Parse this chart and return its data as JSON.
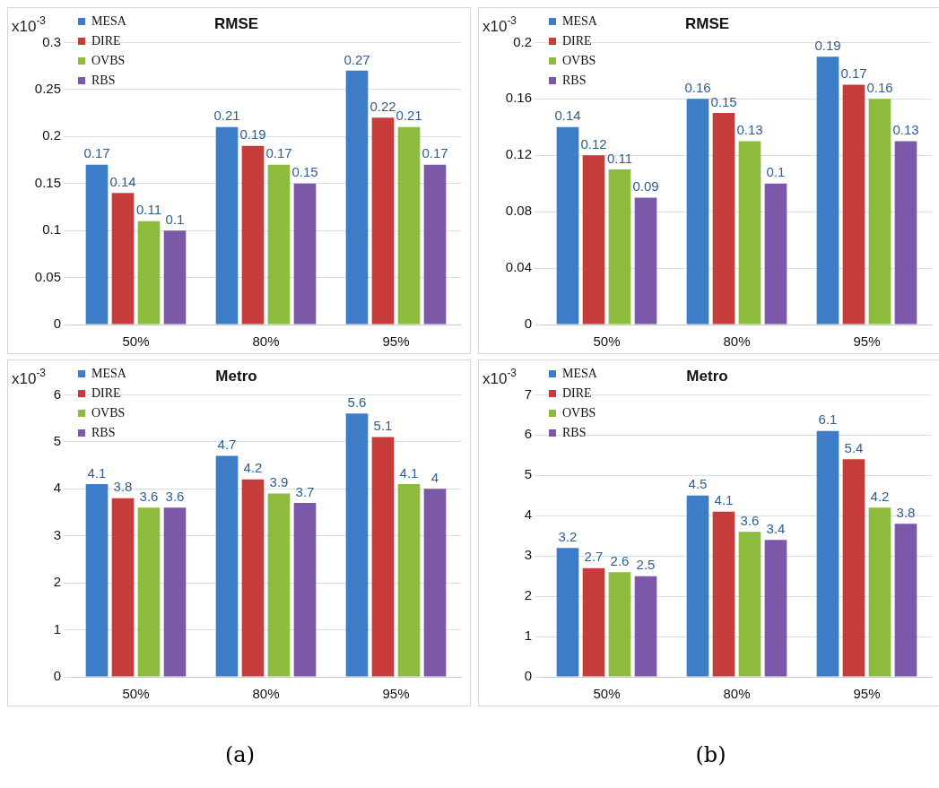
{
  "chart_data": [
    {
      "type": "bar",
      "title": "RMSE",
      "categories": [
        "50%",
        "80%",
        "95%"
      ],
      "series": [
        {
          "name": "MESA",
          "color": "#3d7cc6",
          "values": [
            0.17,
            0.21,
            0.27
          ]
        },
        {
          "name": "DIRE",
          "color": "#c63c3a",
          "values": [
            0.14,
            0.19,
            0.22
          ]
        },
        {
          "name": "OVBS",
          "color": "#8dbb3e",
          "values": [
            0.11,
            0.17,
            0.21
          ]
        },
        {
          "name": "RBS",
          "color": "#7b58a8",
          "values": [
            0.1,
            0.15,
            0.17
          ]
        }
      ],
      "ylim": [
        0,
        0.3
      ],
      "yticks": [
        0,
        0.05,
        0.1,
        0.15,
        0.2,
        0.25,
        0.3
      ],
      "grid": "y",
      "legend": "top left",
      "data_labels": true,
      "annotations": [
        "x10$^{-3}$"
      ]
    },
    {
      "type": "bar",
      "title": "RMSE",
      "categories": [
        "50%",
        "80%",
        "95%"
      ],
      "series": [
        {
          "name": "MESA",
          "color": "#3d7cc6",
          "values": [
            0.14,
            0.16,
            0.19
          ]
        },
        {
          "name": "DIRE",
          "color": "#c63c3a",
          "values": [
            0.12,
            0.15,
            0.17
          ]
        },
        {
          "name": "OVBS",
          "color": "#8dbb3e",
          "values": [
            0.11,
            0.13,
            0.16
          ]
        },
        {
          "name": "RBS",
          "color": "#7b58a8",
          "values": [
            0.09,
            0.1,
            0.13
          ]
        }
      ],
      "ylim": [
        0,
        0.2
      ],
      "yticks": [
        0,
        0.04,
        0.08,
        0.12,
        0.16,
        0.2
      ],
      "grid": "y",
      "legend": "top left",
      "data_labels": true,
      "annotations": [
        "x10$^{-3}$"
      ]
    },
    {
      "type": "bar",
      "title": "Metro",
      "categories": [
        "50%",
        "80%",
        "95%"
      ],
      "series": [
        {
          "name": "MESA",
          "color": "#3d7cc6",
          "values": [
            4.1,
            4.7,
            5.6
          ]
        },
        {
          "name": "DIRE",
          "color": "#c63c3a",
          "values": [
            3.8,
            4.2,
            5.1
          ]
        },
        {
          "name": "OVBS",
          "color": "#8dbb3e",
          "values": [
            3.6,
            3.9,
            4.1
          ]
        },
        {
          "name": "RBS",
          "color": "#7b58a8",
          "values": [
            3.6,
            3.7,
            4
          ]
        }
      ],
      "ylim": [
        0,
        6
      ],
      "yticks": [
        0,
        1,
        2,
        3,
        4,
        5,
        6
      ],
      "grid": "y",
      "legend": "top left",
      "data_labels": true,
      "annotations": [
        "x10$^{-3}$",
        "(a)"
      ]
    },
    {
      "type": "bar",
      "title": "Metro",
      "categories": [
        "50%",
        "80%",
        "95%"
      ],
      "series": [
        {
          "name": "MESA",
          "color": "#3d7cc6",
          "values": [
            3.2,
            4.5,
            6.1
          ]
        },
        {
          "name": "DIRE",
          "color": "#c63c3a",
          "values": [
            2.7,
            4.1,
            5.4
          ]
        },
        {
          "name": "OVBS",
          "color": "#8dbb3e",
          "values": [
            2.6,
            3.6,
            4.2
          ]
        },
        {
          "name": "RBS",
          "color": "#7b58a8",
          "values": [
            2.5,
            3.4,
            3.8
          ]
        }
      ],
      "ylim": [
        0,
        7
      ],
      "yticks": [
        0,
        1,
        2,
        3,
        4,
        5,
        6,
        7
      ],
      "grid": "y",
      "legend": "top left",
      "data_labels": true,
      "annotations": [
        "x10$^{-3}$",
        "(b)"
      ]
    }
  ]
}
